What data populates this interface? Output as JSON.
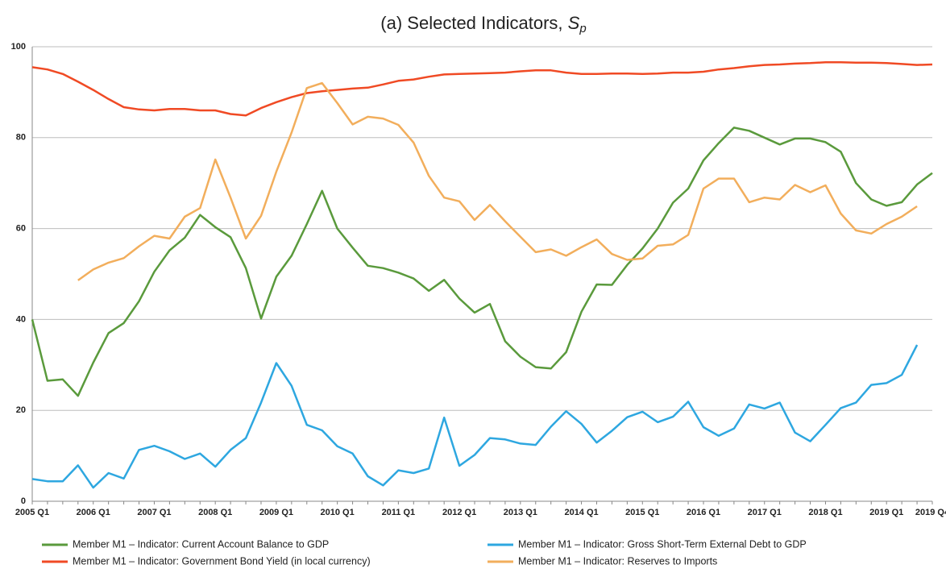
{
  "chart_data": {
    "type": "line",
    "title": "(a) Selected Indicators,",
    "title_symbol": "S",
    "title_subscript": "p",
    "categories": [
      "2005 Q1",
      null,
      null,
      null,
      "2006 Q1",
      null,
      null,
      null,
      "2007 Q1",
      null,
      null,
      null,
      "2008 Q1",
      null,
      null,
      null,
      "2009 Q1",
      null,
      null,
      null,
      "2010 Q1",
      null,
      null,
      null,
      "2011 Q1",
      null,
      null,
      null,
      "2012 Q1",
      null,
      null,
      null,
      "2013 Q1",
      null,
      null,
      null,
      "2014 Q1",
      null,
      null,
      null,
      "2015 Q1",
      null,
      null,
      null,
      "2016 Q1",
      null,
      null,
      null,
      "2017 Q1",
      null,
      null,
      null,
      "2018 Q1",
      null,
      null,
      null,
      "2019 Q1",
      null,
      null,
      "2019 Q4"
    ],
    "ylim": [
      0,
      100
    ],
    "yticks": [
      0,
      20,
      40,
      60,
      80,
      100
    ],
    "grid": true,
    "series": [
      {
        "name": "Member M1 – Indicator: Current Account Balance to GDP",
        "color": "#5a9a3c",
        "values": [
          40,
          26.5,
          26.8,
          23.2,
          30.5,
          37,
          39.2,
          44,
          50.5,
          55.2,
          58,
          63,
          60.3,
          58.1,
          51.3,
          40.2,
          49.4,
          54,
          61,
          68.3,
          60,
          55.8,
          51.8,
          51.3,
          50.3,
          49,
          46.3,
          48.7,
          44.6,
          41.5,
          43.4,
          35.2,
          31.8,
          29.5,
          29.2,
          32.8,
          41.7,
          47.7,
          47.6,
          52,
          55.6,
          60,
          65.7,
          68.8,
          75,
          78.8,
          82.2,
          81.5,
          80,
          78.5,
          79.8,
          79.8,
          79,
          76.9,
          70,
          66.4,
          65,
          65.8,
          69.7,
          72.2
        ]
      },
      {
        "name": "Member M1 – Indicator: Gross Short-Term External Debt to GDP",
        "color": "#2ea7e0",
        "values": [
          4.9,
          4.4,
          4.4,
          7.9,
          3,
          6.2,
          5,
          11.3,
          12.2,
          11,
          9.3,
          10.5,
          7.6,
          11.3,
          13.9,
          21.7,
          30.4,
          25.4,
          16.8,
          15.6,
          12.1,
          10.5,
          5.5,
          3.5,
          6.8,
          6.2,
          7.2,
          18.4,
          7.8,
          10.2,
          13.9,
          13.6,
          12.7,
          12.4,
          16.4,
          19.8,
          17,
          12.9,
          15.5,
          18.5,
          19.7,
          17.4,
          18.6,
          21.9,
          16.3,
          14.4,
          16,
          21.3,
          20.4,
          21.7,
          15.1,
          13.2,
          16.8,
          20.5,
          21.7,
          25.6,
          26,
          27.8,
          34.4,
          null
        ]
      },
      {
        "name": "Member M1 – Indicator: Government Bond Yield (in local currency)",
        "color": "#f04a24",
        "values": [
          95.5,
          95,
          94,
          92.3,
          90.5,
          88.5,
          86.7,
          86.2,
          86,
          86.3,
          86.3,
          86,
          86,
          85.2,
          84.9,
          86.5,
          87.8,
          88.9,
          89.8,
          90.2,
          90.5,
          90.8,
          91,
          91.7,
          92.5,
          92.8,
          93.4,
          93.9,
          94,
          94.1,
          94.2,
          94.3,
          94.6,
          94.8,
          94.8,
          94.3,
          94,
          94,
          94.1,
          94.1,
          94,
          94.1,
          94.3,
          94.3,
          94.5,
          95,
          95.3,
          95.7,
          96,
          96.1,
          96.3,
          96.4,
          96.6,
          96.6,
          96.5,
          96.5,
          96.4,
          96.2,
          96,
          96.1
        ]
      },
      {
        "name": "Member M1 – Indicator: Reserves to Imports",
        "color": "#f2ae5c",
        "values": [
          null,
          null,
          null,
          48.6,
          51,
          52.5,
          53.5,
          56.1,
          58.4,
          57.8,
          62.6,
          64.5,
          75.2,
          66.8,
          57.8,
          62.8,
          72.5,
          81.1,
          90.9,
          92,
          87.6,
          82.9,
          84.6,
          84.2,
          82.8,
          78.9,
          71.6,
          66.8,
          66,
          61.9,
          65.2,
          61.6,
          58.2,
          54.8,
          55.4,
          54,
          55.9,
          57.6,
          54.4,
          53.1,
          53.4,
          56.2,
          56.5,
          58.6,
          68.8,
          71,
          71,
          65.8,
          66.8,
          66.4,
          69.6,
          68,
          69.5,
          63.3,
          59.6,
          58.9,
          61,
          62.6,
          64.9,
          null
        ]
      }
    ]
  }
}
